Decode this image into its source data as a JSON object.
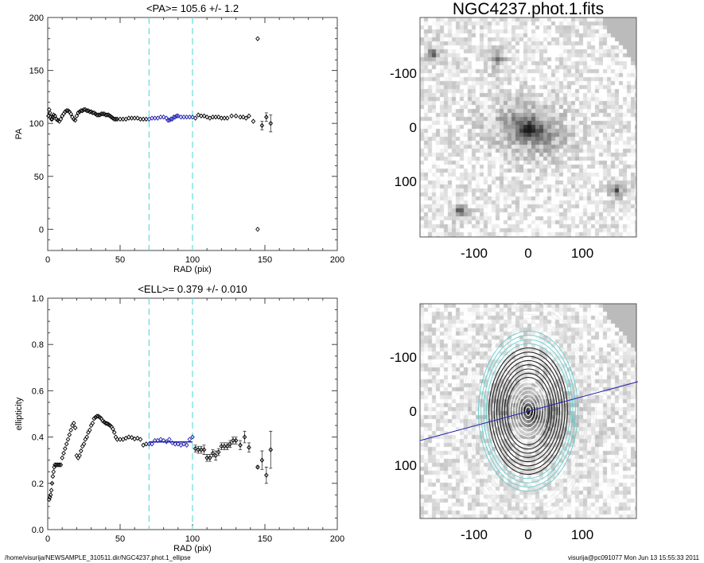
{
  "footer": {
    "path": "/home/visurija/NEWSAMPLE_310511.dir/NGC4237.phot.1_ellipse",
    "stamp": "visurija@pc091077  Mon Jun 13 15:55:33 2011"
  },
  "colors": {
    "fit": "#2020b0",
    "marker": "#000000",
    "range_line": "#66dddd",
    "contour_cyan": "#66cccc"
  },
  "chart_data": [
    {
      "type": "scatter",
      "title": "<PA>= 105.6 +/-   1.2",
      "xlabel": "RAD (pix)",
      "ylabel": "PA",
      "xlim": [
        0,
        200
      ],
      "ylim": [
        -20,
        200
      ],
      "xticks": [
        "0",
        "50",
        "100",
        "150",
        "200"
      ],
      "xtick_values": [
        0,
        50,
        100,
        150,
        200
      ],
      "yticks": [
        "0",
        "50",
        "100",
        "150",
        "200"
      ],
      "ytick_values": [
        0,
        50,
        100,
        150,
        200
      ],
      "range_lines": [
        70,
        100
      ],
      "points": [
        [
          0.5,
          107
        ],
        [
          1,
          113
        ],
        [
          1.5,
          110
        ],
        [
          2,
          106
        ],
        [
          2.5,
          104
        ],
        [
          3,
          104
        ],
        [
          3.5,
          106
        ],
        [
          4,
          108
        ],
        [
          5,
          107
        ],
        [
          6,
          104
        ],
        [
          7,
          103
        ],
        [
          8,
          102
        ],
        [
          9,
          104
        ],
        [
          10,
          107
        ],
        [
          11,
          109
        ],
        [
          12,
          111
        ],
        [
          13,
          112
        ],
        [
          14,
          112
        ],
        [
          15,
          111
        ],
        [
          16,
          109
        ],
        [
          17,
          106
        ],
        [
          18,
          104
        ],
        [
          19,
          103
        ],
        [
          20,
          107
        ],
        [
          21,
          110
        ],
        [
          22,
          111
        ],
        [
          23,
          112
        ],
        [
          24,
          112
        ],
        [
          25,
          113
        ],
        [
          26,
          113
        ],
        [
          27,
          112
        ],
        [
          28,
          112
        ],
        [
          29,
          111
        ],
        [
          30,
          111
        ],
        [
          31,
          110
        ],
        [
          32,
          110
        ],
        [
          33,
          109
        ],
        [
          34,
          108
        ],
        [
          35,
          108
        ],
        [
          36,
          108
        ],
        [
          37,
          109
        ],
        [
          38,
          109
        ],
        [
          39,
          109
        ],
        [
          40,
          108
        ],
        [
          41,
          108
        ],
        [
          42,
          108
        ],
        [
          43,
          107
        ],
        [
          44,
          106
        ],
        [
          45,
          105
        ],
        [
          46,
          104
        ],
        [
          47,
          104
        ],
        [
          48,
          104
        ],
        [
          50,
          104
        ],
        [
          52,
          104
        ],
        [
          54,
          104
        ],
        [
          56,
          105
        ],
        [
          58,
          105
        ],
        [
          60,
          105
        ],
        [
          62,
          105
        ],
        [
          64,
          104
        ],
        [
          66,
          104
        ],
        [
          68,
          104
        ],
        [
          102,
          105
        ],
        [
          104,
          108
        ],
        [
          106,
          107
        ],
        [
          108,
          107
        ],
        [
          110,
          106
        ],
        [
          112,
          105
        ],
        [
          114,
          106
        ],
        [
          116,
          106
        ],
        [
          118,
          106
        ],
        [
          120,
          105
        ],
        [
          122,
          105
        ],
        [
          124,
          105
        ],
        [
          127,
          107
        ],
        [
          130,
          107
        ],
        [
          133,
          106
        ],
        [
          135,
          106
        ],
        [
          137,
          105
        ],
        [
          139,
          107
        ],
        [
          142,
          102
        ],
        [
          145,
          180
        ],
        [
          145,
          0
        ]
      ],
      "error_points": [
        [
          148,
          98,
          4
        ],
        [
          151,
          106,
          4
        ],
        [
          154,
          100,
          8
        ]
      ],
      "fit_points": [
        [
          70,
          104
        ],
        [
          72,
          105
        ],
        [
          74,
          105
        ],
        [
          76,
          105
        ],
        [
          78,
          106
        ],
        [
          80,
          106
        ],
        [
          82,
          105
        ],
        [
          83,
          103
        ],
        [
          84,
          103
        ],
        [
          85,
          104
        ],
        [
          86,
          104
        ],
        [
          87,
          106
        ],
        [
          88,
          106
        ],
        [
          89,
          107
        ],
        [
          90,
          107
        ],
        [
          92,
          106
        ],
        [
          94,
          106
        ],
        [
          96,
          106
        ],
        [
          98,
          106
        ],
        [
          100,
          106
        ]
      ]
    },
    {
      "type": "scatter",
      "title": "<ELL>= 0.379 +/-  0.010",
      "xlabel": "RAD (pix)",
      "ylabel": "ellipticity",
      "xlim": [
        0,
        200
      ],
      "ylim": [
        0,
        1
      ],
      "xticks": [
        "0",
        "50",
        "100",
        "150",
        "200"
      ],
      "xtick_values": [
        0,
        50,
        100,
        150,
        200
      ],
      "yticks": [
        "0.0",
        "0.2",
        "0.4",
        "0.6",
        "0.8",
        "1.0"
      ],
      "ytick_values": [
        0,
        0.2,
        0.4,
        0.6,
        0.8,
        1.0
      ],
      "range_lines": [
        70,
        100
      ],
      "mean": 0.379,
      "points": [
        [
          1,
          0.13
        ],
        [
          1.5,
          0.14
        ],
        [
          2,
          0.15
        ],
        [
          2.5,
          0.17
        ],
        [
          3,
          0.2
        ],
        [
          3.5,
          0.23
        ],
        [
          4,
          0.25
        ],
        [
          4.5,
          0.27
        ],
        [
          5,
          0.28
        ],
        [
          6,
          0.28
        ],
        [
          7,
          0.28
        ],
        [
          8,
          0.28
        ],
        [
          9,
          0.28
        ],
        [
          10,
          0.31
        ],
        [
          11,
          0.33
        ],
        [
          12,
          0.35
        ],
        [
          13,
          0.37
        ],
        [
          14,
          0.39
        ],
        [
          15,
          0.41
        ],
        [
          16,
          0.43
        ],
        [
          17,
          0.45
        ],
        [
          18,
          0.46
        ],
        [
          19,
          0.44
        ],
        [
          20,
          0.32
        ],
        [
          21,
          0.31
        ],
        [
          22,
          0.32
        ],
        [
          23,
          0.34
        ],
        [
          24,
          0.36
        ],
        [
          25,
          0.37
        ],
        [
          26,
          0.39
        ],
        [
          27,
          0.4
        ],
        [
          28,
          0.42
        ],
        [
          29,
          0.43
        ],
        [
          30,
          0.45
        ],
        [
          31,
          0.46
        ],
        [
          32,
          0.48
        ],
        [
          33,
          0.485
        ],
        [
          34,
          0.49
        ],
        [
          35,
          0.49
        ],
        [
          36,
          0.485
        ],
        [
          37,
          0.48
        ],
        [
          38,
          0.47
        ],
        [
          39,
          0.465
        ],
        [
          40,
          0.46
        ],
        [
          41,
          0.458
        ],
        [
          42,
          0.455
        ],
        [
          43,
          0.45
        ],
        [
          44,
          0.445
        ],
        [
          45,
          0.435
        ],
        [
          46,
          0.42
        ],
        [
          47,
          0.4
        ],
        [
          48,
          0.39
        ],
        [
          50,
          0.39
        ],
        [
          52,
          0.39
        ],
        [
          54,
          0.395
        ],
        [
          56,
          0.4
        ],
        [
          58,
          0.398
        ],
        [
          60,
          0.392
        ],
        [
          62,
          0.395
        ],
        [
          64,
          0.39
        ],
        [
          66,
          0.365
        ],
        [
          68,
          0.37
        ]
      ],
      "error_points": [
        [
          102,
          0.35,
          0.015
        ],
        [
          104,
          0.345,
          0.015
        ],
        [
          106,
          0.345,
          0.015
        ],
        [
          108,
          0.345,
          0.02
        ],
        [
          110,
          0.31,
          0.015
        ],
        [
          112,
          0.31,
          0.015
        ],
        [
          114,
          0.33,
          0.015
        ],
        [
          116,
          0.32,
          0.02
        ],
        [
          118,
          0.335,
          0.015
        ],
        [
          120,
          0.36,
          0.015
        ],
        [
          122,
          0.36,
          0.015
        ],
        [
          124,
          0.36,
          0.015
        ],
        [
          126,
          0.37,
          0.015
        ],
        [
          128,
          0.385,
          0.015
        ],
        [
          130,
          0.385,
          0.015
        ],
        [
          133,
          0.365,
          0.02
        ],
        [
          136,
          0.4,
          0.025
        ],
        [
          139,
          0.355,
          0.02
        ],
        [
          145,
          0.27,
          0.005
        ],
        [
          148,
          0.3,
          0.04
        ],
        [
          151,
          0.235,
          0.035
        ],
        [
          154,
          0.345,
          0.08
        ]
      ],
      "fit_points": [
        [
          70,
          0.37
        ],
        [
          72,
          0.37
        ],
        [
          74,
          0.385
        ],
        [
          76,
          0.385
        ],
        [
          78,
          0.39
        ],
        [
          80,
          0.385
        ],
        [
          82,
          0.38
        ],
        [
          84,
          0.39
        ],
        [
          86,
          0.375
        ],
        [
          88,
          0.37
        ],
        [
          90,
          0.37
        ],
        [
          92,
          0.365
        ],
        [
          94,
          0.37
        ],
        [
          96,
          0.365
        ],
        [
          98,
          0.39
        ],
        [
          100,
          0.4
        ]
      ]
    }
  ],
  "images": [
    {
      "title": "NGC4237.phot.1.fits",
      "xticks": [
        "-100",
        "0",
        "100"
      ],
      "yticks": [
        "100",
        "0",
        "-100"
      ],
      "tick_values": [
        -100,
        0,
        100
      ],
      "range": [
        -200,
        200
      ]
    },
    {
      "title": "",
      "xticks": [
        "-100",
        "0",
        "100"
      ],
      "yticks": [
        "100",
        "0",
        "-100"
      ],
      "tick_values": [
        -100,
        0,
        100
      ],
      "range": [
        -200,
        200
      ],
      "pa_deg": 105.6,
      "ell": 0.379
    }
  ]
}
